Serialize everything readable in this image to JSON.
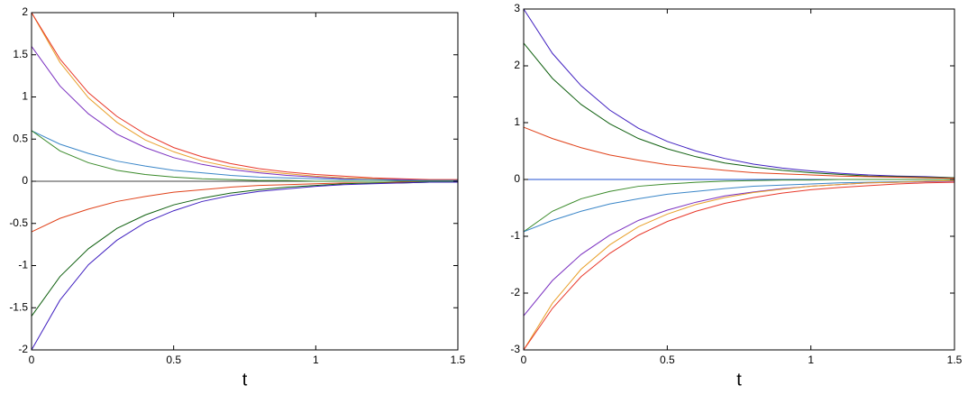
{
  "chart_data": [
    {
      "type": "line",
      "xlabel": "t",
      "xlim": [
        0,
        1.5
      ],
      "xticks": [
        0,
        0.5,
        1,
        1.5
      ],
      "ylim": [
        -2,
        2
      ],
      "yticks": [
        -2,
        -1.5,
        -1,
        -0.5,
        0,
        0.5,
        1,
        1.5,
        2
      ],
      "x": [
        0,
        0.1,
        0.2,
        0.3,
        0.4,
        0.5,
        0.6,
        0.7,
        0.8,
        0.9,
        1,
        1.1,
        1.2,
        1.3,
        1.4,
        1.5
      ],
      "series": [
        {
          "color": "#e8a02a",
          "values": [
            2,
            1.41,
            0.99,
            0.7,
            0.49,
            0.35,
            0.24,
            0.17,
            0.12,
            0.09,
            0.06,
            0.04,
            0.03,
            0.02,
            0.01,
            0.01
          ]
        },
        {
          "color": "#e8382a",
          "values": [
            2,
            1.45,
            1.05,
            0.77,
            0.56,
            0.4,
            0.29,
            0.21,
            0.15,
            0.11,
            0.08,
            0.06,
            0.04,
            0.03,
            0.02,
            0.02
          ]
        },
        {
          "color": "#7a2fc0",
          "values": [
            1.6,
            1.13,
            0.8,
            0.56,
            0.4,
            0.28,
            0.2,
            0.14,
            0.1,
            0.07,
            0.05,
            0.03,
            0.02,
            0.02,
            0.01,
            0.01
          ]
        },
        {
          "color": "#3a86c8",
          "values": [
            0.6,
            0.44,
            0.33,
            0.24,
            0.18,
            0.13,
            0.1,
            0.07,
            0.05,
            0.04,
            0.03,
            0.02,
            0.02,
            0.01,
            0.01,
            0.01
          ]
        },
        {
          "color": "#3a8a2a",
          "values": [
            0.6,
            0.36,
            0.22,
            0.13,
            0.08,
            0.05,
            0.03,
            0.02,
            0.01,
            0.01,
            0,
            0,
            0,
            0,
            0,
            0
          ]
        },
        {
          "color": "#e0421a",
          "values": [
            -0.6,
            -0.44,
            -0.33,
            -0.24,
            -0.18,
            -0.13,
            -0.1,
            -0.07,
            -0.05,
            -0.04,
            -0.03,
            -0.02,
            -0.02,
            -0.01,
            -0.01,
            -0.01
          ]
        },
        {
          "color": "#106010",
          "values": [
            -1.6,
            -1.13,
            -0.8,
            -0.56,
            -0.4,
            -0.28,
            -0.2,
            -0.14,
            -0.1,
            -0.07,
            -0.05,
            -0.03,
            -0.02,
            -0.02,
            -0.01,
            -0.01
          ]
        },
        {
          "color": "#4020c0",
          "values": [
            -2,
            -1.41,
            -0.99,
            -0.7,
            -0.49,
            -0.35,
            -0.24,
            -0.17,
            -0.12,
            -0.09,
            -0.06,
            -0.04,
            -0.03,
            -0.02,
            -0.01,
            -0.01
          ]
        }
      ]
    },
    {
      "type": "line",
      "xlabel": "t",
      "xlim": [
        0,
        1.5
      ],
      "xticks": [
        0,
        0.5,
        1,
        1.5
      ],
      "ylim": [
        -3,
        3
      ],
      "yticks": [
        -3,
        -2,
        -1,
        0,
        1,
        2,
        3
      ],
      "x": [
        0,
        0.1,
        0.2,
        0.3,
        0.4,
        0.5,
        0.6,
        0.7,
        0.8,
        0.9,
        1,
        1.1,
        1.2,
        1.3,
        1.4,
        1.5
      ],
      "series": [
        {
          "color": "#4020c0",
          "values": [
            3,
            2.22,
            1.65,
            1.22,
            0.9,
            0.67,
            0.5,
            0.37,
            0.27,
            0.2,
            0.15,
            0.11,
            0.08,
            0.06,
            0.05,
            0.03
          ]
        },
        {
          "color": "#106010",
          "values": [
            2.4,
            1.78,
            1.32,
            0.98,
            0.72,
            0.54,
            0.4,
            0.29,
            0.22,
            0.16,
            0.12,
            0.09,
            0.06,
            0.05,
            0.04,
            0.03
          ]
        },
        {
          "color": "#e0421a",
          "values": [
            0.92,
            0.72,
            0.56,
            0.43,
            0.34,
            0.26,
            0.21,
            0.16,
            0.12,
            0.1,
            0.08,
            0.06,
            0.05,
            0.04,
            0.03,
            0.02
          ]
        },
        {
          "color": "#2050d0",
          "values": [
            0,
            0,
            0,
            0,
            0,
            0,
            0,
            0,
            0,
            0,
            0,
            0,
            0,
            0,
            0,
            0
          ]
        },
        {
          "color": "#3a8a2a",
          "values": [
            -0.92,
            -0.56,
            -0.34,
            -0.21,
            -0.12,
            -0.08,
            -0.05,
            -0.03,
            -0.02,
            -0.01,
            -0.01,
            0,
            0,
            0,
            0,
            0
          ]
        },
        {
          "color": "#3a86c8",
          "values": [
            -0.92,
            -0.72,
            -0.56,
            -0.43,
            -0.34,
            -0.26,
            -0.21,
            -0.16,
            -0.12,
            -0.1,
            -0.08,
            -0.06,
            -0.05,
            -0.04,
            -0.03,
            -0.02
          ]
        },
        {
          "color": "#7a2fc0",
          "values": [
            -2.4,
            -1.78,
            -1.32,
            -0.98,
            -0.72,
            -0.54,
            -0.4,
            -0.29,
            -0.22,
            -0.16,
            -0.12,
            -0.09,
            -0.06,
            -0.05,
            -0.04,
            -0.03
          ]
        },
        {
          "color": "#e8a02a",
          "values": [
            -3,
            -2.18,
            -1.58,
            -1.15,
            -0.83,
            -0.61,
            -0.44,
            -0.32,
            -0.23,
            -0.17,
            -0.12,
            -0.09,
            -0.06,
            -0.05,
            -0.03,
            -0.02
          ]
        },
        {
          "color": "#e8382a",
          "values": [
            -3,
            -2.27,
            -1.71,
            -1.3,
            -0.98,
            -0.74,
            -0.56,
            -0.42,
            -0.32,
            -0.24,
            -0.18,
            -0.14,
            -0.11,
            -0.08,
            -0.06,
            -0.05
          ]
        }
      ]
    }
  ]
}
